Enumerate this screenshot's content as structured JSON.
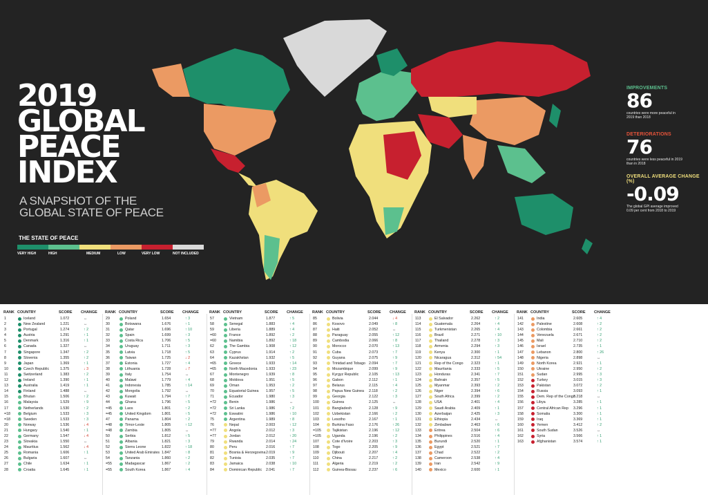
{
  "title": {
    "lines": [
      "2019",
      "GLOBAL",
      "PEACE",
      "INDEX"
    ],
    "subtitle": "A SNAPSHOT OF THE GLOBAL STATE OF PEACE"
  },
  "legend": {
    "title": "THE STATE OF PEACE",
    "items": [
      {
        "label": "VERY HIGH",
        "color": "#1e8f6a"
      },
      {
        "label": "HIGH",
        "color": "#5cc08e"
      },
      {
        "label": "MEDIUM",
        "color": "#f0df7c"
      },
      {
        "label": "LOW",
        "color": "#eb9a63"
      },
      {
        "label": "VERY LOW",
        "color": "#c7202f"
      },
      {
        "label": "NOT INCLUDED",
        "color": "#d9d9d9"
      }
    ]
  },
  "stats": {
    "improvements": {
      "label": "IMPROVEMENTS",
      "value": "86",
      "note": "countries were more peaceful in 2019 than 2018",
      "color": "#5cc08e"
    },
    "deteriorations": {
      "label": "DETERIORATIONS",
      "value": "76",
      "note": "countries were less peaceful in 2019 than in 2018",
      "color": "#e8543a"
    },
    "average": {
      "label": "OVERALL AVERAGE CHANGE (%)",
      "value": "-0.09",
      "note": "The global GPI average improved 0.09 per cent from 2018 to 2019",
      "color": "#f0df7c"
    }
  },
  "table_headers": {
    "rank": "RANK",
    "country": "COUNTRY",
    "score": "SCORE",
    "change": "CHANGE"
  },
  "columns": [
    [
      [
        "1",
        "Iceland",
        "1.072",
        "flat",
        ""
      ],
      [
        "2",
        "New Zealand",
        "1.221",
        "flat",
        ""
      ],
      [
        "3",
        "Portugal",
        "1.274",
        "up",
        "2"
      ],
      [
        "4",
        "Austria",
        "1.291",
        "up",
        "1"
      ],
      [
        "5",
        "Denmark",
        "1.316",
        "up",
        "1"
      ],
      [
        "6",
        "Canada",
        "1.327",
        "flat",
        ""
      ],
      [
        "7",
        "Singapore",
        "1.347",
        "up",
        "2"
      ],
      [
        "8",
        "Slovenia",
        "1.355",
        "up",
        "2"
      ],
      [
        "9",
        "Japan",
        "1.369",
        "up",
        "1"
      ],
      [
        "10",
        "Czech Republic",
        "1.375",
        "down",
        "3"
      ],
      [
        "11",
        "Switzerland",
        "1.383",
        "up",
        "2"
      ],
      [
        "12",
        "Ireland",
        "1.390",
        "up",
        "1"
      ],
      [
        "13",
        "Australia",
        "1.419",
        "up",
        "1"
      ],
      [
        "14",
        "Finland",
        "1.488",
        "flat",
        ""
      ],
      [
        "15",
        "Bhutan",
        "1.506",
        "up",
        "2"
      ],
      [
        "16",
        "Malaysia",
        "1.529",
        "up",
        "9"
      ],
      [
        "17",
        "Netherlands",
        "1.530",
        "up",
        "2"
      ],
      [
        "=18",
        "Belgium",
        "1.533",
        "up",
        "3"
      ],
      [
        "=18",
        "Sweden",
        "1.533",
        "up",
        "3"
      ],
      [
        "20",
        "Norway",
        "1.536",
        "down",
        "4"
      ],
      [
        "21",
        "Hungary",
        "1.540",
        "up",
        "1"
      ],
      [
        "22",
        "Germany",
        "1.547",
        "down",
        "4"
      ],
      [
        "23",
        "Slovakia",
        "1.550",
        "flat",
        ""
      ],
      [
        "24",
        "Mauritius",
        "1.562",
        "down",
        "4"
      ],
      [
        "25",
        "Romania",
        "1.606",
        "up",
        "1"
      ],
      [
        "26",
        "Bulgaria",
        "1.607",
        "flat",
        ""
      ],
      [
        "27",
        "Chile",
        "1.634",
        "up",
        "1"
      ],
      [
        "28",
        "Croatia",
        "1.645",
        "up",
        "1"
      ]
    ],
    [
      [
        "29",
        "Poland",
        "1.654",
        "up",
        "3"
      ],
      [
        "30",
        "Botswana",
        "1.676",
        "up",
        "1"
      ],
      [
        "31",
        "Qatar",
        "1.696",
        "up",
        "10"
      ],
      [
        "32",
        "Spain",
        "1.699",
        "up",
        "3"
      ],
      [
        "33",
        "Costa Rica",
        "1.706",
        "up",
        "5"
      ],
      [
        "34",
        "Uruguay",
        "1.711",
        "up",
        "3"
      ],
      [
        "35",
        "Latvia",
        "1.718",
        "up",
        "5"
      ],
      [
        "36",
        "Taiwan",
        "1.725",
        "down",
        "2"
      ],
      [
        "37",
        "Estonia",
        "1.727",
        "up",
        "4"
      ],
      [
        "38",
        "Lithuania",
        "1.728",
        "down",
        "7"
      ],
      [
        "39",
        "Italy",
        "1.754",
        "flat",
        ""
      ],
      [
        "40",
        "Malawi",
        "1.779",
        "up",
        "4"
      ],
      [
        "41",
        "Indonesia",
        "1.785",
        "up",
        "14"
      ],
      [
        "42",
        "Mongolia",
        "1.792",
        "flat",
        ""
      ],
      [
        "43",
        "Kuwait",
        "1.794",
        "up",
        "7"
      ],
      [
        "44",
        "Ghana",
        "1.796",
        "up",
        "5"
      ],
      [
        "=45",
        "Laos",
        "1.801",
        "up",
        "2"
      ],
      [
        "=45",
        "United Kingdom",
        "1.801",
        "up",
        "5"
      ],
      [
        "47",
        "Panama",
        "1.804",
        "up",
        "2"
      ],
      [
        "=48",
        "Timor-Leste",
        "1.805",
        "up",
        "12"
      ],
      [
        "=48",
        "Zambia",
        "1.805",
        "flat",
        ""
      ],
      [
        "50",
        "Serbia",
        "1.812",
        "up",
        "5"
      ],
      [
        "51",
        "Albania",
        "1.821",
        "up",
        "3"
      ],
      [
        "52",
        "Sierra Leone",
        "1.822",
        "up",
        "18"
      ],
      [
        "53",
        "United Arab Emirates",
        "1.847",
        "up",
        "8"
      ],
      [
        "54",
        "Tanzania",
        "1.860",
        "up",
        "2"
      ],
      [
        "=55",
        "Madagascar",
        "1.867",
        "up",
        "2"
      ],
      [
        "=55",
        "South Korea",
        "1.867",
        "up",
        "4"
      ]
    ],
    [
      [
        "57",
        "Vietnam",
        "1.877",
        "up",
        "5"
      ],
      [
        "58",
        "Senegal",
        "1.883",
        "up",
        "4"
      ],
      [
        "59",
        "Liberia",
        "1.889",
        "up",
        "4"
      ],
      [
        "=60",
        "France",
        "1.892",
        "up",
        "2"
      ],
      [
        "=60",
        "Namibia",
        "1.892",
        "up",
        "18"
      ],
      [
        "62",
        "The Gambia",
        "1.908",
        "up",
        "12"
      ],
      [
        "63",
        "Cyprus",
        "1.914",
        "up",
        "2"
      ],
      [
        "64",
        "Kazakhstan",
        "1.932",
        "up",
        "5"
      ],
      [
        "=65",
        "Greece",
        "1.933",
        "up",
        "14"
      ],
      [
        "=65",
        "North Macedonia",
        "1.933",
        "up",
        "23"
      ],
      [
        "67",
        "Montenegro",
        "1.939",
        "up",
        "8"
      ],
      [
        "68",
        "Moldova",
        "1.951",
        "up",
        "5"
      ],
      [
        "69",
        "Oman",
        "1.953",
        "up",
        "2"
      ],
      [
        "70",
        "Equatorial Guinea",
        "1.957",
        "up",
        "5"
      ],
      [
        "71",
        "Ecuador",
        "1.980",
        "up",
        "3"
      ],
      [
        "=72",
        "Benin",
        "1.986",
        "flat",
        ""
      ],
      [
        "=72",
        "Sri Lanka",
        "1.986",
        "up",
        "2"
      ],
      [
        "=72",
        "Eswatini",
        "1.986",
        "up",
        "10"
      ],
      [
        "75",
        "Argentina",
        "1.989",
        "up",
        "8"
      ],
      [
        "76",
        "Nepal",
        "2.003",
        "up",
        "12"
      ],
      [
        "=77",
        "Angola",
        "2.012",
        "up",
        "3"
      ],
      [
        "=77",
        "Jordan",
        "2.012",
        "up",
        "20"
      ],
      [
        "79",
        "Rwanda",
        "2.014",
        "up",
        "24"
      ],
      [
        "80",
        "Peru",
        "2.016",
        "up",
        "7"
      ],
      [
        "81",
        "Bosnia & Herzegovina",
        "2.019",
        "up",
        "9"
      ],
      [
        "82",
        "Tunisia",
        "2.035",
        "up",
        "7"
      ],
      [
        "83",
        "Jamaica",
        "2.038",
        "up",
        "10"
      ],
      [
        "84",
        "Dominican Republic",
        "2.041",
        "up",
        "7"
      ]
    ],
    [
      [
        "85",
        "Bolivia",
        "2.044",
        "down",
        "4"
      ],
      [
        "86",
        "Kosovo",
        "2.049",
        "up",
        "8"
      ],
      [
        "87",
        "Haiti",
        "2.052",
        "flat",
        ""
      ],
      [
        "88",
        "Paraguay",
        "2.055",
        "up",
        "12"
      ],
      [
        "89",
        "Cambodia",
        "2.066",
        "up",
        "8"
      ],
      [
        "90",
        "Morocco",
        "2.070",
        "up",
        "13"
      ],
      [
        "91",
        "Cuba",
        "2.073",
        "up",
        "7"
      ],
      [
        "92",
        "Guyana",
        "2.075",
        "up",
        "9"
      ],
      [
        "93",
        "Trinidad and Tobago",
        "2.094",
        "up",
        "7"
      ],
      [
        "94",
        "Mozambique",
        "2.099",
        "up",
        "9"
      ],
      [
        "95",
        "Kyrgyz Republic",
        "2.105",
        "up",
        "13"
      ],
      [
        "96",
        "Gabon",
        "2.112",
        "up",
        "1"
      ],
      [
        "97",
        "Belarus",
        "2.115",
        "up",
        "4"
      ],
      [
        "98",
        "Papua New Guinea",
        "2.118",
        "up",
        "2"
      ],
      [
        "99",
        "Georgia",
        "2.122",
        "up",
        "3"
      ],
      [
        "100",
        "Guinea",
        "2.125",
        "flat",
        ""
      ],
      [
        "101",
        "Bangladesh",
        "2.128",
        "up",
        "9"
      ],
      [
        "102",
        "Uzbekistan",
        "2.166",
        "up",
        "2"
      ],
      [
        "103",
        "Lesotho",
        "2.167",
        "up",
        "1"
      ],
      [
        "104",
        "Burkina Faso",
        "2.176",
        "up",
        "26"
      ],
      [
        "=105",
        "Tajikistan",
        "2.196",
        "up",
        "12"
      ],
      [
        "=105",
        "Uganda",
        "2.196",
        "up",
        "2"
      ],
      [
        "107",
        "Cote d'Ivoire",
        "2.203",
        "up",
        "3"
      ],
      [
        "108",
        "Togo",
        "2.205",
        "up",
        "9"
      ],
      [
        "109",
        "Djibouti",
        "2.207",
        "up",
        "4"
      ],
      [
        "110",
        "China",
        "2.217",
        "up",
        "2"
      ],
      [
        "111",
        "Algeria",
        "2.219",
        "up",
        "2"
      ],
      [
        "112",
        "Guinea-Bissau",
        "2.237",
        "up",
        "6"
      ]
    ],
    [
      [
        "113",
        "El Salvador",
        "2.262",
        "up",
        "2"
      ],
      [
        "114",
        "Guatemala",
        "2.264",
        "up",
        "4"
      ],
      [
        "115",
        "Turkmenistan",
        "2.265",
        "up",
        "4"
      ],
      [
        "116",
        "Brazil",
        "2.271",
        "up",
        "10"
      ],
      [
        "117",
        "Thailand",
        "2.278",
        "up",
        "3"
      ],
      [
        "118",
        "Armenia",
        "2.294",
        "up",
        "3"
      ],
      [
        "119",
        "Kenya",
        "2.300",
        "up",
        "1"
      ],
      [
        "120",
        "Nicaragua",
        "2.312",
        "up",
        "54"
      ],
      [
        "121",
        "Rep of the Congo",
        "2.323",
        "up",
        "1"
      ],
      [
        "122",
        "Mauritania",
        "2.333",
        "up",
        "5"
      ],
      [
        "123",
        "Honduras",
        "2.341",
        "up",
        "7"
      ],
      [
        "124",
        "Bahrain",
        "2.357",
        "up",
        "5"
      ],
      [
        "125",
        "Myanmar",
        "2.393",
        "up",
        "2"
      ],
      [
        "126",
        "Niger",
        "2.394",
        "up",
        "6"
      ],
      [
        "127",
        "South Africa",
        "2.399",
        "up",
        "2"
      ],
      [
        "128",
        "USA",
        "2.401",
        "up",
        "4"
      ],
      [
        "129",
        "Saudi Arabia",
        "2.409",
        "up",
        "1"
      ],
      [
        "130",
        "Azerbaijan",
        "2.425",
        "up",
        "3"
      ],
      [
        "131",
        "Ethiopia",
        "2.434",
        "flat",
        ""
      ],
      [
        "132",
        "Zimbabwe",
        "2.463",
        "up",
        "6"
      ],
      [
        "133",
        "Eritrea",
        "2.504",
        "up",
        "6"
      ],
      [
        "134",
        "Philippines",
        "2.516",
        "up",
        "4"
      ],
      [
        "135",
        "Burundi",
        "2.520",
        "up",
        "1"
      ],
      [
        "136",
        "Egypt",
        "2.521",
        "up",
        "7"
      ],
      [
        "137",
        "Chad",
        "2.522",
        "up",
        "2"
      ],
      [
        "138",
        "Cameroon",
        "2.538",
        "up",
        "4"
      ],
      [
        "139",
        "Iran",
        "2.542",
        "up",
        "9"
      ],
      [
        "140",
        "Mexico",
        "2.600",
        "up",
        "1"
      ]
    ],
    [
      [
        "141",
        "India",
        "2.605",
        "up",
        "4"
      ],
      [
        "142",
        "Palestine",
        "2.608",
        "up",
        "2"
      ],
      [
        "143",
        "Colombia",
        "2.661",
        "up",
        "2"
      ],
      [
        "144",
        "Venezuela",
        "2.671",
        "up",
        "2"
      ],
      [
        "145",
        "Mali",
        "2.710",
        "up",
        "2"
      ],
      [
        "146",
        "Israel",
        "2.735",
        "up",
        "1"
      ],
      [
        "147",
        "Lebanon",
        "2.800",
        "up",
        "26"
      ],
      [
        "148",
        "Nigeria",
        "2.898",
        "flat",
        ""
      ],
      [
        "149",
        "North Korea",
        "2.921",
        "up",
        "1"
      ],
      [
        "150",
        "Ukraine",
        "2.950",
        "up",
        "2"
      ],
      [
        "151",
        "Sudan",
        "2.995",
        "up",
        "3"
      ],
      [
        "152",
        "Turkey",
        "3.015",
        "up",
        "3"
      ],
      [
        "153",
        "Pakistan",
        "3.072",
        "up",
        "2"
      ],
      [
        "154",
        "Russia",
        "3.093",
        "up",
        "1"
      ],
      [
        "155",
        "Dem. Rep of the Congo",
        "3.218",
        "flat",
        ""
      ],
      [
        "156",
        "Libya",
        "3.285",
        "up",
        "1"
      ],
      [
        "157",
        "Central African Rep",
        "3.296",
        "up",
        "1"
      ],
      [
        "158",
        "Somalia",
        "3.300",
        "up",
        "1"
      ],
      [
        "159",
        "Iraq",
        "3.369",
        "up",
        "1"
      ],
      [
        "160",
        "Yemen",
        "3.412",
        "up",
        "2"
      ],
      [
        "161",
        "South Sudan",
        "3.526",
        "flat",
        ""
      ],
      [
        "162",
        "Syria",
        "3.566",
        "up",
        "1"
      ],
      [
        "163",
        "Afghanistan",
        "3.574",
        "up",
        "1"
      ]
    ]
  ]
}
